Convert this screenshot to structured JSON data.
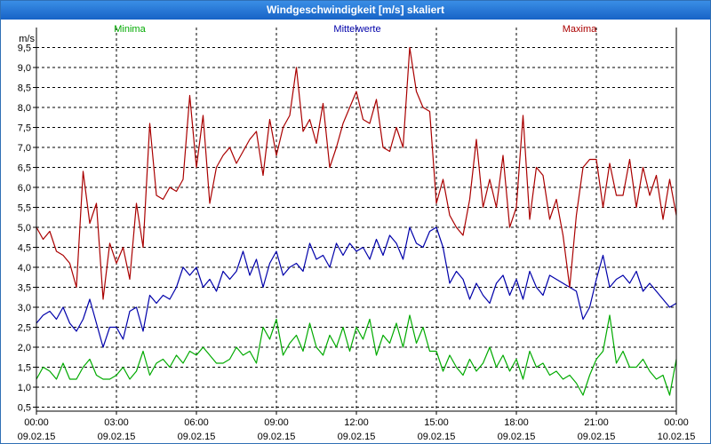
{
  "window": {
    "title": "Windgeschwindigkeit [m/s] skaliert"
  },
  "chart_data": {
    "type": "line",
    "title": "Windgeschwindigkeit [m/s] skaliert",
    "ylabel": "m/s",
    "xlabel": "",
    "ylim": [
      0.4,
      10.0
    ],
    "xlim": [
      0,
      24
    ],
    "y_ticks": [
      0.5,
      1.0,
      1.5,
      2.0,
      2.5,
      3.0,
      3.5,
      4.0,
      4.5,
      5.0,
      5.5,
      6.0,
      6.5,
      7.0,
      7.5,
      8.0,
      8.5,
      9.0,
      9.5
    ],
    "y_tick_labels": [
      "0,5",
      "1,0",
      "1,5",
      "2,0",
      "2,5",
      "3,0",
      "3,5",
      "4,0",
      "4,5",
      "5,0",
      "5,5",
      "6,0",
      "6,5",
      "7,0",
      "7,5",
      "8,0",
      "8,5",
      "9,0",
      "9,5"
    ],
    "x_ticks": [
      0,
      3,
      6,
      9,
      12,
      15,
      18,
      21,
      24
    ],
    "x_tick_labels": [
      {
        "time": "00:00",
        "date": "09.02.15"
      },
      {
        "time": "03:00",
        "date": "09.02.15"
      },
      {
        "time": "06:00",
        "date": "09.02.15"
      },
      {
        "time": "09:00",
        "date": "09.02.15"
      },
      {
        "time": "12:00",
        "date": "09.02.15"
      },
      {
        "time": "15:00",
        "date": "09.02.15"
      },
      {
        "time": "18:00",
        "date": "09.02.15"
      },
      {
        "time": "21:00",
        "date": "09.02.15"
      },
      {
        "time": "00:00",
        "date": "10.02.15"
      }
    ],
    "grid": true,
    "series": [
      {
        "name": "Minima",
        "color": "#00aa00",
        "x": [
          0.0,
          0.25,
          0.5,
          0.75,
          1.0,
          1.25,
          1.5,
          1.75,
          2.0,
          2.25,
          2.5,
          2.75,
          3.0,
          3.25,
          3.5,
          3.75,
          4.0,
          4.25,
          4.5,
          4.75,
          5.0,
          5.25,
          5.5,
          5.75,
          6.0,
          6.25,
          6.5,
          6.75,
          7.0,
          7.25,
          7.5,
          7.75,
          8.0,
          8.25,
          8.5,
          8.75,
          9.0,
          9.25,
          9.5,
          9.75,
          10.0,
          10.25,
          10.5,
          10.75,
          11.0,
          11.25,
          11.5,
          11.75,
          12.0,
          12.25,
          12.5,
          12.75,
          13.0,
          13.25,
          13.5,
          13.75,
          14.0,
          14.25,
          14.5,
          14.75,
          15.0,
          15.25,
          15.5,
          15.75,
          16.0,
          16.25,
          16.5,
          16.75,
          17.0,
          17.25,
          17.5,
          17.75,
          18.0,
          18.25,
          18.5,
          18.75,
          19.0,
          19.25,
          19.5,
          19.75,
          20.0,
          20.25,
          20.5,
          20.75,
          21.0,
          21.25,
          21.5,
          21.75,
          22.0,
          22.25,
          22.5,
          22.75,
          23.0,
          23.25,
          23.5,
          23.75,
          24.0
        ],
        "values": [
          1.2,
          1.5,
          1.4,
          1.2,
          1.6,
          1.2,
          1.2,
          1.5,
          1.7,
          1.3,
          1.2,
          1.2,
          1.3,
          1.5,
          1.2,
          1.4,
          1.9,
          1.3,
          1.6,
          1.7,
          1.5,
          1.8,
          1.6,
          1.9,
          1.8,
          2.0,
          1.8,
          1.6,
          1.6,
          1.7,
          2.0,
          1.8,
          1.9,
          1.6,
          2.5,
          2.2,
          2.7,
          1.8,
          2.1,
          2.3,
          1.9,
          2.6,
          2.0,
          1.8,
          2.3,
          2.0,
          2.5,
          1.9,
          2.5,
          2.2,
          2.7,
          1.8,
          2.3,
          2.1,
          2.6,
          2.0,
          2.8,
          2.1,
          2.5,
          1.9,
          1.9,
          1.4,
          1.8,
          1.5,
          1.3,
          1.7,
          1.4,
          1.6,
          2.0,
          1.5,
          1.8,
          1.4,
          1.7,
          1.2,
          1.9,
          1.5,
          1.6,
          1.3,
          1.4,
          1.2,
          1.3,
          1.1,
          0.8,
          1.3,
          1.7,
          1.9,
          2.8,
          1.6,
          1.9,
          1.5,
          1.5,
          1.7,
          1.4,
          1.2,
          1.3,
          0.8,
          1.7
        ],
        "legend": "Minima"
      },
      {
        "name": "Mittelwerte",
        "color": "#0000aa",
        "x": [
          0.0,
          0.25,
          0.5,
          0.75,
          1.0,
          1.25,
          1.5,
          1.75,
          2.0,
          2.25,
          2.5,
          2.75,
          3.0,
          3.25,
          3.5,
          3.75,
          4.0,
          4.25,
          4.5,
          4.75,
          5.0,
          5.25,
          5.5,
          5.75,
          6.0,
          6.25,
          6.5,
          6.75,
          7.0,
          7.25,
          7.5,
          7.75,
          8.0,
          8.25,
          8.5,
          8.75,
          9.0,
          9.25,
          9.5,
          9.75,
          10.0,
          10.25,
          10.5,
          10.75,
          11.0,
          11.25,
          11.5,
          11.75,
          12.0,
          12.25,
          12.5,
          12.75,
          13.0,
          13.25,
          13.5,
          13.75,
          14.0,
          14.25,
          14.5,
          14.75,
          15.0,
          15.25,
          15.5,
          15.75,
          16.0,
          16.25,
          16.5,
          16.75,
          17.0,
          17.25,
          17.5,
          17.75,
          18.0,
          18.25,
          18.5,
          18.75,
          19.0,
          19.25,
          19.5,
          19.75,
          20.0,
          20.25,
          20.5,
          20.75,
          21.0,
          21.25,
          21.5,
          21.75,
          22.0,
          22.25,
          22.5,
          22.75,
          23.0,
          23.25,
          23.5,
          23.75,
          24.0
        ],
        "values": [
          2.6,
          2.8,
          2.9,
          2.7,
          3.0,
          2.6,
          2.4,
          2.7,
          3.2,
          2.6,
          2.0,
          2.5,
          2.5,
          2.2,
          2.9,
          3.0,
          2.4,
          3.3,
          3.1,
          3.3,
          3.2,
          3.5,
          4.0,
          3.8,
          4.0,
          3.5,
          3.7,
          3.4,
          3.9,
          3.7,
          3.9,
          4.4,
          3.8,
          4.2,
          3.5,
          4.1,
          4.4,
          3.8,
          4.0,
          4.1,
          3.9,
          4.6,
          4.2,
          4.3,
          4.0,
          4.6,
          4.3,
          4.6,
          4.4,
          4.5,
          4.2,
          4.7,
          4.3,
          4.8,
          4.6,
          4.2,
          5.0,
          4.6,
          4.5,
          4.9,
          5.0,
          4.5,
          3.6,
          3.9,
          3.7,
          3.2,
          3.6,
          3.3,
          3.1,
          3.6,
          3.8,
          3.3,
          3.7,
          3.2,
          3.9,
          3.5,
          3.3,
          3.8,
          3.7,
          3.6,
          3.5,
          3.4,
          2.7,
          3.0,
          3.7,
          4.3,
          3.5,
          3.7,
          3.8,
          3.6,
          3.9,
          3.4,
          3.6,
          3.4,
          3.2,
          3.0,
          3.1
        ],
        "legend": "Mittelwerte"
      },
      {
        "name": "Maxima",
        "color": "#aa0000",
        "x": [
          0.0,
          0.25,
          0.5,
          0.75,
          1.0,
          1.25,
          1.5,
          1.75,
          2.0,
          2.25,
          2.5,
          2.75,
          3.0,
          3.25,
          3.5,
          3.75,
          4.0,
          4.25,
          4.5,
          4.75,
          5.0,
          5.25,
          5.5,
          5.75,
          6.0,
          6.25,
          6.5,
          6.75,
          7.0,
          7.25,
          7.5,
          7.75,
          8.0,
          8.25,
          8.5,
          8.75,
          9.0,
          9.25,
          9.5,
          9.75,
          10.0,
          10.25,
          10.5,
          10.75,
          11.0,
          11.25,
          11.5,
          11.75,
          12.0,
          12.25,
          12.5,
          12.75,
          13.0,
          13.25,
          13.5,
          13.75,
          14.0,
          14.25,
          14.5,
          14.75,
          15.0,
          15.25,
          15.5,
          15.75,
          16.0,
          16.25,
          16.5,
          16.75,
          17.0,
          17.25,
          17.5,
          17.75,
          18.0,
          18.25,
          18.5,
          18.75,
          19.0,
          19.25,
          19.5,
          19.75,
          20.0,
          20.25,
          20.5,
          20.75,
          21.0,
          21.25,
          21.5,
          21.75,
          22.0,
          22.25,
          22.5,
          22.75,
          23.0,
          23.25,
          23.5,
          23.75,
          24.0
        ],
        "values": [
          5.0,
          4.7,
          4.9,
          4.4,
          4.3,
          4.1,
          3.5,
          6.4,
          5.1,
          5.6,
          3.2,
          4.6,
          4.1,
          4.5,
          3.7,
          5.6,
          4.5,
          7.6,
          5.8,
          5.7,
          6.0,
          5.9,
          6.2,
          8.3,
          6.5,
          7.8,
          5.6,
          6.5,
          6.8,
          7.0,
          6.6,
          6.9,
          7.2,
          7.4,
          6.3,
          7.7,
          6.8,
          7.5,
          7.8,
          9.0,
          7.4,
          7.7,
          7.1,
          8.1,
          6.5,
          7.0,
          7.6,
          8.0,
          8.4,
          7.7,
          7.6,
          8.2,
          7.0,
          6.9,
          7.5,
          7.0,
          9.5,
          8.4,
          8.0,
          7.9,
          5.6,
          6.2,
          5.3,
          5.0,
          4.8,
          5.7,
          7.2,
          5.5,
          6.2,
          5.5,
          6.8,
          5.0,
          5.5,
          7.8,
          5.2,
          6.5,
          6.3,
          5.2,
          5.7,
          4.8,
          3.5,
          5.3,
          6.5,
          6.7,
          6.7,
          5.5,
          6.6,
          5.8,
          5.8,
          6.7,
          5.5,
          6.5,
          5.8,
          6.3,
          5.2,
          6.2,
          5.3
        ],
        "legend": "Maxima"
      }
    ]
  }
}
